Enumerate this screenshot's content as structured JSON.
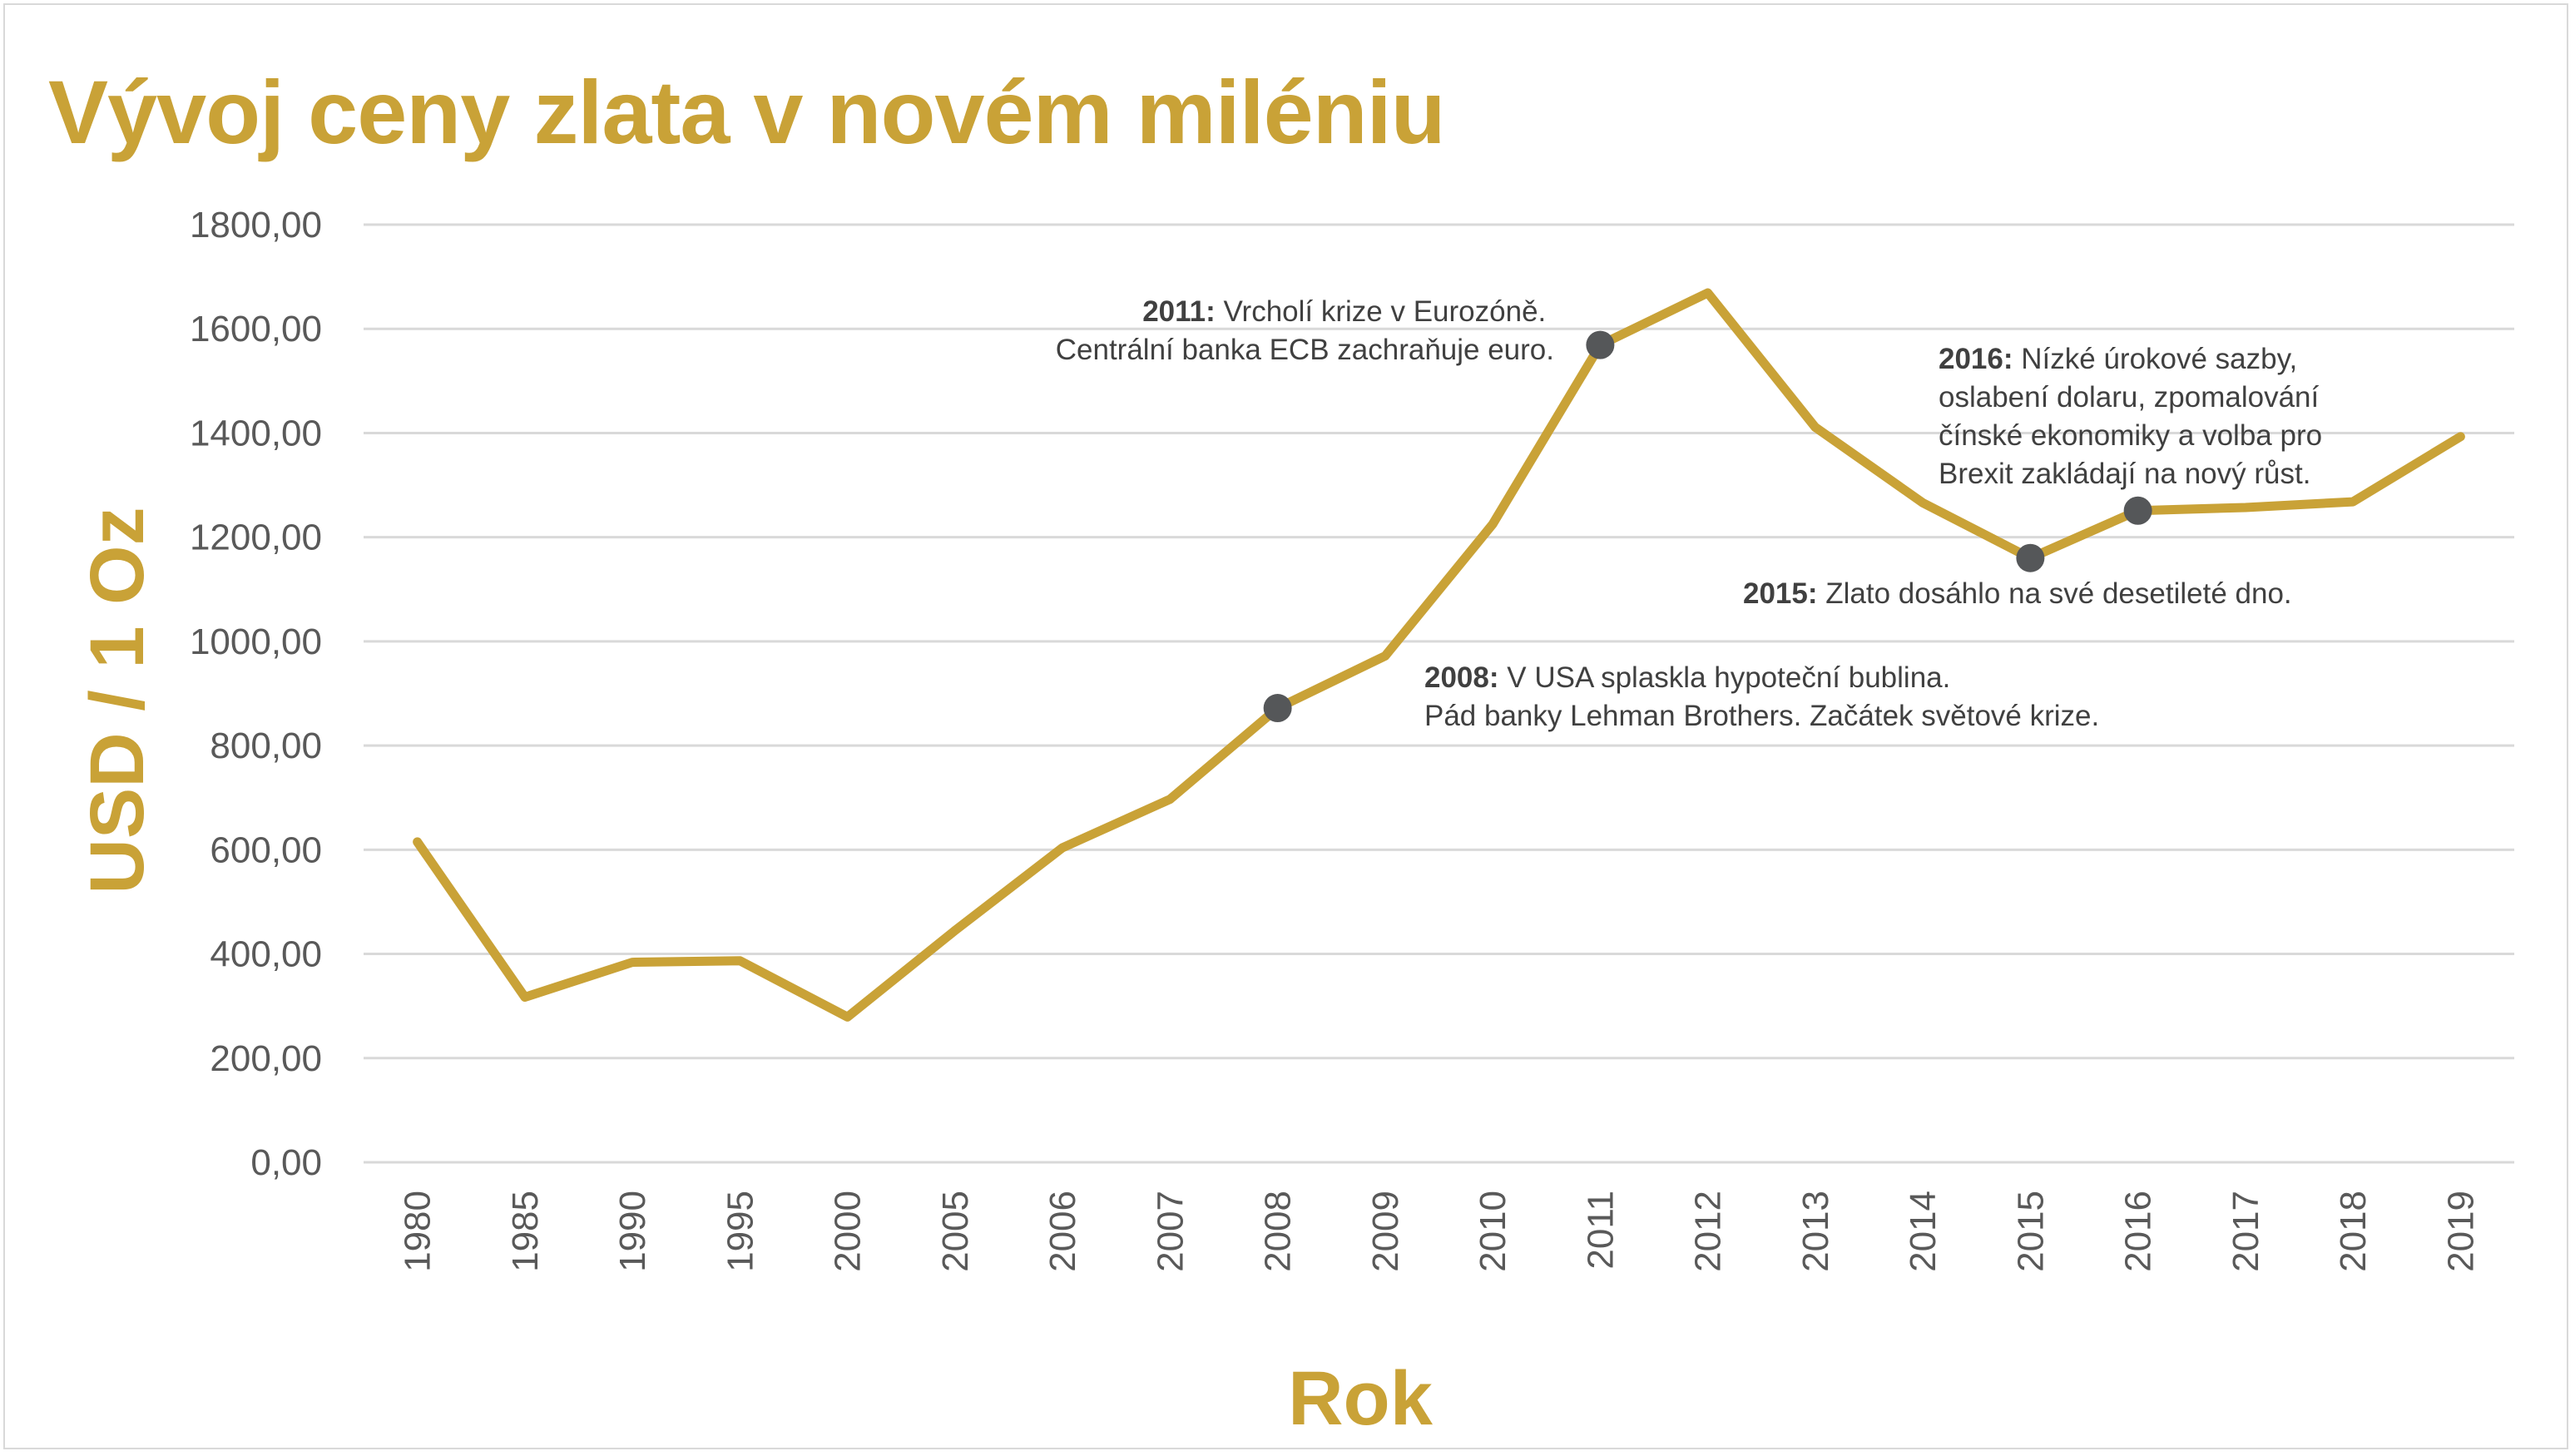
{
  "title": "Vývoj ceny zlata v novém miléniu",
  "colors": {
    "line": "#c9a237",
    "marker": "#555759",
    "grid": "#d9d9d9",
    "tick_text": "#595959",
    "title": "#c9a237",
    "annotation_text": "#404040"
  },
  "chart_data": {
    "type": "line",
    "title": "Vývoj ceny zlata v novém miléniu",
    "xlabel": "Rok",
    "ylabel": "USD / 1 Oz",
    "categories": [
      "1980",
      "1985",
      "1990",
      "1995",
      "2000",
      "2005",
      "2006",
      "2007",
      "2008",
      "2009",
      "2010",
      "2011",
      "2012",
      "2013",
      "2014",
      "2015",
      "2016",
      "2017",
      "2018",
      "2019"
    ],
    "y_ticks": [
      "0,00",
      "200,00",
      "400,00",
      "600,00",
      "800,00",
      "1000,00",
      "1200,00",
      "1400,00",
      "1600,00",
      "1800,00"
    ],
    "ylim": [
      0,
      1800
    ],
    "grid": true,
    "legend": "none",
    "series": [
      {
        "values": [
          615,
          317,
          384,
          387,
          279,
          445,
          604,
          697,
          872,
          972,
          1225,
          1569,
          1669,
          1411,
          1266,
          1160,
          1251,
          1257,
          1268,
          1393
        ]
      }
    ],
    "markers": [
      {
        "category": "2008",
        "value": 872
      },
      {
        "category": "2011",
        "value": 1569
      },
      {
        "category": "2015",
        "value": 1160
      },
      {
        "category": "2016",
        "value": 1251
      }
    ],
    "annotations": [
      {
        "year": "2011:",
        "lines": [
          " Vrcholí krize v Eurozóně.",
          "Centrální banka ECB zachraňuje euro."
        ]
      },
      {
        "year": "2016:",
        "lines": [
          " Nízké úrokové sazby,",
          "oslabení dolaru, zpomalování",
          "čínské ekonomiky a volba pro",
          "Brexit zakládají na nový růst."
        ]
      },
      {
        "year": "2015:",
        "lines": [
          " Zlato dosáhlo na své desetileté dno."
        ]
      },
      {
        "year": "2008:",
        "lines": [
          " V USA splaskla hypoteční bublina.",
          "Pád banky Lehman Brothers. Začátek světové krize."
        ]
      }
    ]
  }
}
